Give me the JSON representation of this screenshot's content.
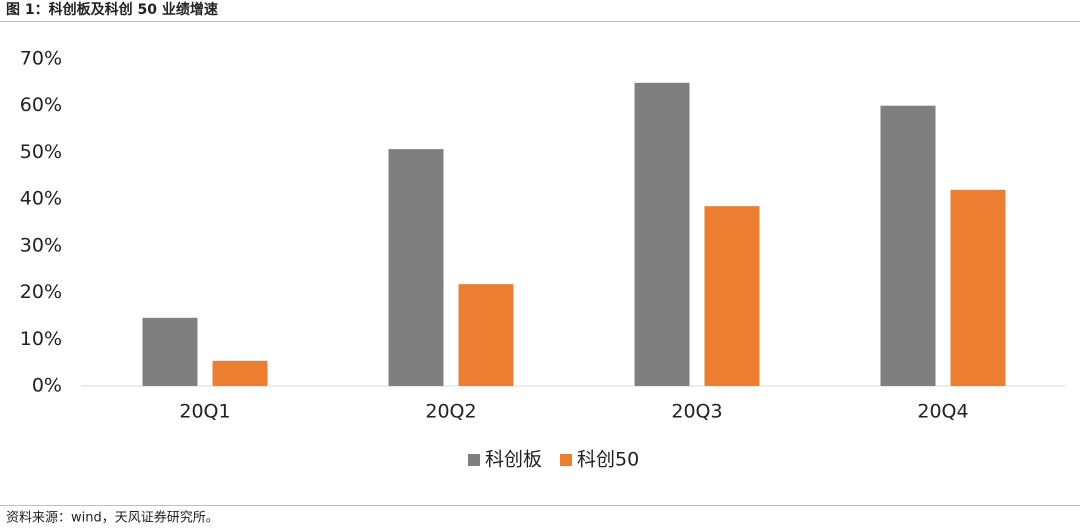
{
  "header": {
    "title": "图 1：科创板及科创 50 业绩增速"
  },
  "chart_data": {
    "type": "bar",
    "categories": [
      "20Q1",
      "20Q2",
      "20Q3",
      "20Q4"
    ],
    "series": [
      {
        "name": "科创板",
        "color": "#7f7f7f",
        "values": [
          14.6,
          50.7,
          64.9,
          60.0
        ]
      },
      {
        "name": "科创50",
        "color": "#ed7d31",
        "values": [
          5.4,
          21.8,
          38.5,
          42.0
        ]
      }
    ],
    "ylim": [
      0,
      70
    ],
    "yticks": [
      {
        "value": 0,
        "label": "0%"
      },
      {
        "value": 10,
        "label": "10%"
      },
      {
        "value": 20,
        "label": "20%"
      },
      {
        "value": 30,
        "label": "30%"
      },
      {
        "value": 40,
        "label": "40%"
      },
      {
        "value": 50,
        "label": "50%"
      },
      {
        "value": 60,
        "label": "60%"
      },
      {
        "value": 70,
        "label": "70%"
      }
    ],
    "grid": false,
    "legend": "bottom"
  },
  "footer": {
    "source": "资料来源：wind，天风证券研究所。"
  }
}
